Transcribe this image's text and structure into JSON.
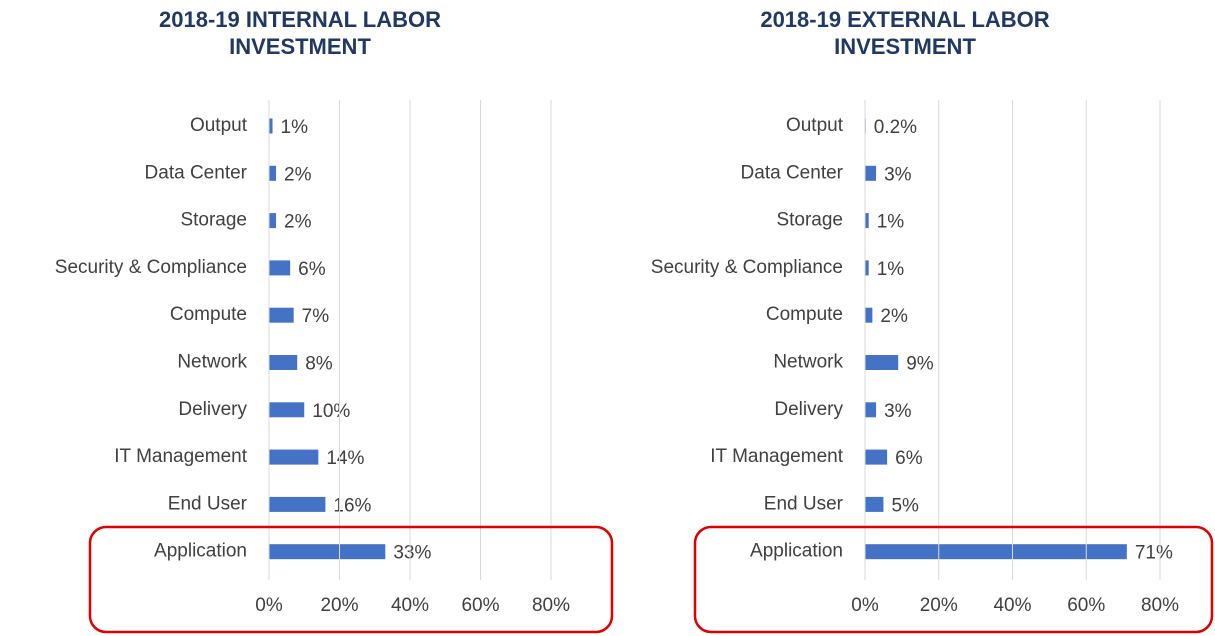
{
  "chart_data": [
    {
      "type": "bar",
      "orientation": "horizontal",
      "title": "2018-19 INTERNAL LABOR INVESTMENT",
      "categories": [
        "Output",
        "Data Center",
        "Storage",
        "Security & Compliance",
        "Compute",
        "Network",
        "Delivery",
        "IT Management",
        "End User",
        "Application"
      ],
      "values": [
        1,
        2,
        2,
        6,
        7,
        8,
        10,
        14,
        16,
        33
      ],
      "value_labels": [
        "1%",
        "2%",
        "2%",
        "6%",
        "7%",
        "8%",
        "10%",
        "14%",
        "16%",
        "33%"
      ],
      "color": "#4472c4",
      "xlim": [
        0,
        80
      ],
      "xticks": [
        {
          "value": 0,
          "label": "0%"
        },
        {
          "value": 20,
          "label": "20%"
        },
        {
          "value": 40,
          "label": "40%"
        },
        {
          "value": 60,
          "label": "60%"
        },
        {
          "value": 80,
          "label": "80%"
        }
      ],
      "grid": true
    },
    {
      "type": "bar",
      "orientation": "horizontal",
      "title": "2018-19 EXTERNAL LABOR INVESTMENT",
      "categories": [
        "Output",
        "Data Center",
        "Storage",
        "Security & Compliance",
        "Compute",
        "Network",
        "Delivery",
        "IT Management",
        "End User",
        "Application"
      ],
      "values": [
        0.2,
        3,
        1,
        1,
        2,
        9,
        3,
        6,
        5,
        71
      ],
      "value_labels": [
        "0.2%",
        "3%",
        "1%",
        "1%",
        "2%",
        "9%",
        "3%",
        "6%",
        "5%",
        "71%"
      ],
      "color": "#4472c4",
      "xlim": [
        0,
        80
      ],
      "xticks": [
        {
          "value": 0,
          "label": "0%"
        },
        {
          "value": 20,
          "label": "20%"
        },
        {
          "value": 40,
          "label": "40%"
        },
        {
          "value": 60,
          "label": "60%"
        },
        {
          "value": 80,
          "label": "80%"
        }
      ],
      "grid": true
    }
  ]
}
